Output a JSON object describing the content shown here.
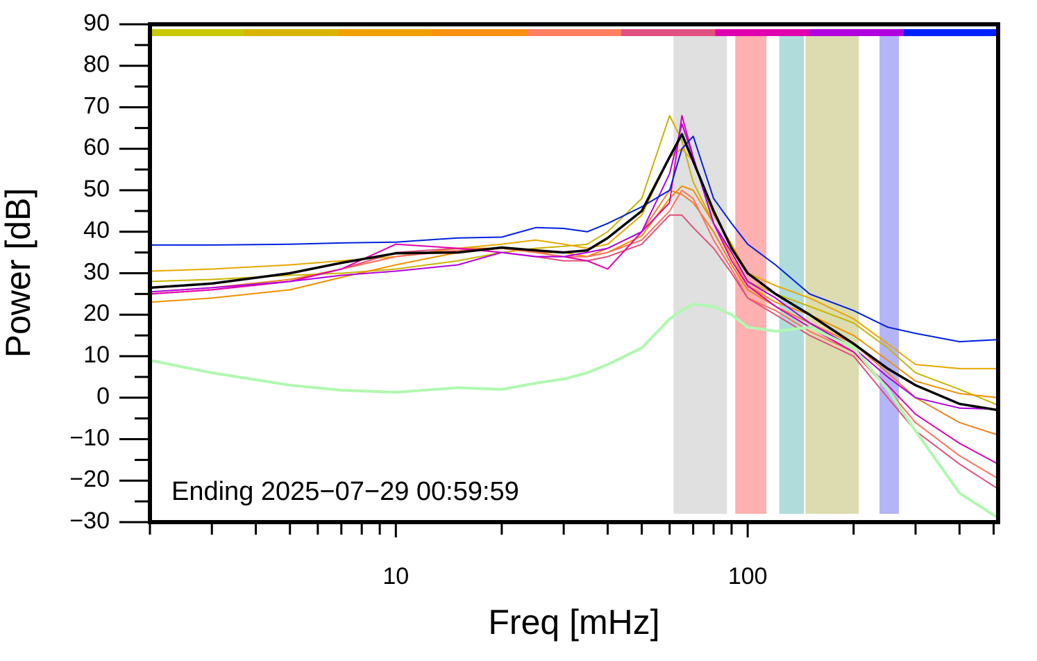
{
  "chart_data": {
    "type": "line",
    "xlabel": "Freq [mHz]",
    "ylabel": "Power [dB]",
    "annotation": "Ending 2025−07−29 00:59:59",
    "log_x": true,
    "xlim": [
      2,
      515
    ],
    "ylim": [
      -30,
      90
    ],
    "xticks": [
      10,
      100
    ],
    "xminorticks": [
      2,
      3,
      4,
      5,
      6,
      7,
      8,
      9,
      20,
      30,
      40,
      50,
      60,
      70,
      80,
      90,
      200,
      300,
      400,
      500
    ],
    "yticks": [
      {
        "value": -30,
        "label": "−30"
      },
      {
        "value": -20,
        "label": "−20"
      },
      {
        "value": -10,
        "label": "−10"
      },
      0,
      10,
      20,
      30,
      40,
      50,
      60,
      70,
      80,
      90
    ],
    "yminorticks": [
      -25,
      -15,
      -5,
      5,
      15,
      25,
      35,
      45,
      55,
      65,
      75,
      85
    ],
    "color_bar": [
      "#c8c800",
      "#d8b400",
      "#f0a000",
      "#f89010",
      "#ff7f60",
      "#e05080",
      "#e000b0",
      "#b000e0",
      "#0020ff"
    ],
    "bands": [
      {
        "x0": 61.5,
        "x1": 87.3,
        "color": "#e0e0e0"
      },
      {
        "x0": 92.2,
        "x1": 113,
        "color": "#ffb0b0"
      },
      {
        "x0": 123,
        "x1": 144.5,
        "color": "#b0dcdc"
      },
      {
        "x0": 146,
        "x1": 207,
        "color": "#dcdcb0"
      },
      {
        "x0": 237,
        "x1": 269,
        "color": "#b4b4f8"
      }
    ],
    "x": [
      2,
      3,
      5,
      7,
      10,
      15,
      20,
      25,
      30,
      35,
      40,
      50,
      60,
      65,
      70,
      80,
      90,
      100,
      120,
      150,
      200,
      250,
      300,
      400,
      515
    ],
    "series": [
      {
        "color": "#c8b400",
        "values": [
          28,
          28.5,
          29.5,
          30,
          31,
          33,
          35,
          36,
          36.5,
          37,
          40,
          48,
          68,
          62,
          52,
          42,
          35,
          28,
          25,
          22,
          18,
          12,
          6,
          2,
          -1.8
        ]
      },
      {
        "color": "#e8a800",
        "values": [
          30.5,
          31,
          32,
          33,
          34,
          36,
          37,
          38,
          37,
          36,
          37,
          44,
          58,
          60,
          57,
          44,
          37,
          30,
          27,
          24,
          19,
          13,
          8,
          7,
          7
        ]
      },
      {
        "color": "#f09000",
        "values": [
          23,
          24,
          26,
          29,
          32,
          35,
          36,
          35,
          35,
          34,
          35,
          39,
          48,
          51,
          50,
          42,
          34,
          27,
          23,
          20,
          15,
          9,
          4,
          1,
          0
        ]
      },
      {
        "color": "#f08020",
        "values": [
          25.5,
          26.5,
          28.5,
          31,
          34,
          36,
          36,
          35,
          34,
          34,
          36,
          40,
          50,
          49,
          47,
          40,
          32,
          26,
          22,
          18,
          13,
          6,
          0,
          -6,
          -9
        ]
      },
      {
        "color": "#ff7060",
        "values": [
          25,
          26,
          28,
          31,
          34,
          35.5,
          36,
          35,
          34,
          34,
          35,
          38,
          45,
          50,
          48,
          38,
          31,
          24,
          21,
          16,
          11,
          2,
          -6,
          -14,
          -19.5
        ]
      },
      {
        "color": "#e05078",
        "values": [
          25,
          26,
          28,
          31,
          35,
          36,
          35,
          34,
          33,
          33,
          34,
          37,
          44,
          44,
          41,
          36,
          30,
          24,
          20,
          15,
          10,
          0,
          -8,
          -16,
          -22
        ]
      },
      {
        "color": "#e000b0",
        "values": [
          25,
          26,
          28,
          31,
          37,
          36,
          35,
          34,
          34,
          33,
          31,
          40,
          47,
          68,
          58,
          42,
          33,
          27,
          22,
          17,
          11,
          3,
          -4,
          -11,
          -16
        ]
      },
      {
        "color": "#b000e0",
        "values": [
          25.5,
          26.5,
          28,
          29.5,
          30.5,
          32,
          35,
          34,
          34,
          35,
          36,
          40,
          54,
          66,
          58,
          42,
          35,
          28,
          24,
          18,
          12,
          5,
          0,
          -2.5,
          -2.8
        ]
      },
      {
        "color": "#0020e0",
        "values": [
          36.8,
          36.8,
          37,
          37.3,
          37.5,
          38.5,
          38.7,
          41,
          40.8,
          40,
          42,
          46,
          50,
          60,
          63,
          48,
          42,
          37,
          32,
          25,
          21,
          17,
          15.5,
          13.5,
          14
        ]
      },
      {
        "color": "#b0f8b0",
        "width": 4,
        "values": [
          9,
          6,
          3,
          1.8,
          1.3,
          2.4,
          2,
          3.5,
          4.5,
          6,
          8,
          12,
          19,
          21,
          22.5,
          22,
          20,
          17,
          16,
          17,
          12,
          2,
          -8,
          -23,
          -29
        ]
      },
      {
        "color": "#000000",
        "width": 3.5,
        "values": [
          26.5,
          27.5,
          30,
          32.5,
          34.8,
          35,
          36.2,
          35.5,
          35,
          35.5,
          38.5,
          45,
          58,
          63.5,
          57,
          45,
          36,
          30,
          25,
          20,
          13,
          7,
          3,
          -1.5,
          -3
        ]
      }
    ]
  }
}
